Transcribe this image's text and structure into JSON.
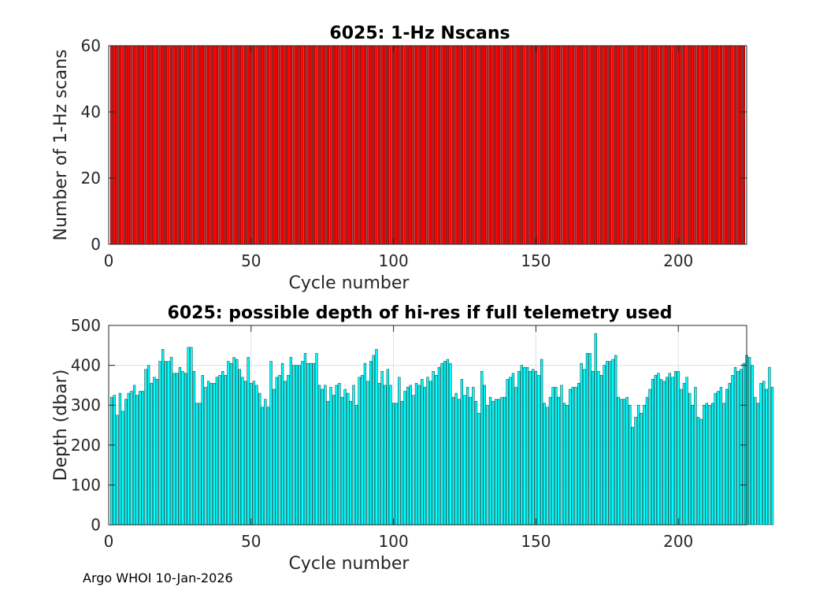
{
  "chart_data": [
    {
      "type": "bar",
      "title": "6025: 1-Hz Nscans",
      "xlabel": "Cycle number",
      "ylabel": "Number of 1-Hz scans",
      "xlim": [
        0,
        224
      ],
      "ylim": [
        0,
        60
      ],
      "xticks": [
        0,
        50,
        100,
        150,
        200
      ],
      "yticks": [
        0,
        20,
        40,
        60
      ],
      "bar_color": "#ff0000",
      "grid": false,
      "x_start": 1,
      "values": [
        60,
        60,
        60,
        60,
        60,
        60,
        60,
        60,
        60,
        60,
        60,
        60,
        60,
        60,
        60,
        60,
        60,
        60,
        60,
        60,
        60,
        60,
        60,
        60,
        60,
        60,
        60,
        60,
        60,
        60,
        60,
        60,
        60,
        60,
        60,
        60,
        60,
        60,
        60,
        60,
        60,
        60,
        60,
        60,
        60,
        60,
        60,
        60,
        60,
        60,
        60,
        60,
        60,
        60,
        60,
        60,
        60,
        60,
        60,
        60,
        60,
        60,
        60,
        60,
        60,
        60,
        60,
        60,
        60,
        60,
        60,
        60,
        60,
        60,
        60,
        60,
        60,
        60,
        60,
        60,
        60,
        60,
        60,
        60,
        60,
        60,
        60,
        60,
        60,
        60,
        60,
        60,
        60,
        60,
        60,
        60,
        60,
        60,
        60,
        60,
        60,
        60,
        60,
        60,
        60,
        60,
        60,
        60,
        60,
        60,
        60,
        60,
        60,
        60,
        60,
        60,
        60,
        60,
        60,
        60,
        60,
        60,
        60,
        60,
        60,
        60,
        60,
        60,
        60,
        60,
        60,
        60,
        60,
        60,
        60,
        60,
        60,
        60,
        60,
        60,
        60,
        60,
        60,
        60,
        60,
        60,
        60,
        60,
        60,
        60,
        60,
        60,
        60,
        60,
        60,
        60,
        60,
        60,
        60,
        60,
        60,
        60,
        60,
        60,
        60,
        60,
        60,
        60,
        60,
        60,
        60,
        60,
        60,
        60,
        60,
        60,
        60,
        60,
        60,
        60,
        60,
        60,
        60,
        60,
        60,
        60,
        60,
        60,
        60,
        60,
        60,
        60,
        60,
        60,
        60,
        60,
        60,
        60,
        60,
        60,
        60,
        60,
        60,
        60,
        60,
        60,
        60,
        60,
        60,
        60,
        60,
        60,
        60,
        60,
        60,
        60,
        60,
        60,
        60,
        60,
        60,
        60,
        60
      ]
    },
    {
      "type": "bar",
      "title": "6025: possible depth of hi-res if full telemetry used",
      "xlabel": "Cycle number",
      "ylabel": "Depth (dbar)",
      "xlim": [
        0,
        224
      ],
      "ylim": [
        0,
        500
      ],
      "xticks": [
        0,
        50,
        100,
        150,
        200
      ],
      "yticks": [
        0,
        100,
        200,
        300,
        400,
        500
      ],
      "bar_color": "#00ffff",
      "grid": true,
      "x_start": 1,
      "values": [
        320,
        325,
        275,
        330,
        285,
        315,
        330,
        335,
        350,
        325,
        335,
        335,
        390,
        400,
        355,
        370,
        365,
        410,
        440,
        410,
        410,
        420,
        380,
        380,
        395,
        385,
        380,
        445,
        445,
        385,
        305,
        305,
        375,
        345,
        360,
        355,
        355,
        370,
        375,
        385,
        375,
        410,
        405,
        420,
        415,
        390,
        370,
        360,
        420,
        355,
        360,
        350,
        330,
        295,
        315,
        295,
        410,
        340,
        370,
        375,
        405,
        360,
        375,
        420,
        400,
        400,
        400,
        410,
        430,
        405,
        405,
        405,
        430,
        350,
        340,
        350,
        310,
        345,
        325,
        350,
        355,
        320,
        340,
        330,
        310,
        350,
        300,
        370,
        375,
        405,
        360,
        410,
        425,
        440,
        355,
        385,
        350,
        390,
        350,
        305,
        305,
        370,
        310,
        335,
        345,
        350,
        325,
        355,
        350,
        365,
        345,
        370,
        360,
        385,
        375,
        395,
        405,
        410,
        415,
        405,
        320,
        330,
        315,
        365,
        325,
        345,
        320,
        345,
        310,
        280,
        385,
        350,
        300,
        320,
        310,
        315,
        315,
        320,
        320,
        365,
        370,
        380,
        345,
        385,
        400,
        395,
        395,
        385,
        390,
        385,
        375,
        415,
        305,
        295,
        320,
        345,
        345,
        320,
        350,
        305,
        300,
        340,
        345,
        345,
        355,
        405,
        390,
        430,
        430,
        385,
        480,
        385,
        375,
        400,
        410,
        410,
        415,
        425,
        320,
        315,
        315,
        320,
        300,
        245,
        270,
        300,
        280,
        300,
        320,
        340,
        365,
        375,
        380,
        365,
        360,
        370,
        380,
        370,
        385,
        385,
        340,
        355,
        370,
        330,
        300,
        345,
        270,
        265,
        300,
        305,
        300,
        305,
        330,
        335,
        345,
        305,
        340,
        355,
        375,
        395,
        385,
        390,
        405,
        425,
        420,
        400,
        320,
        305,
        355,
        360,
        340,
        395,
        345
      ]
    }
  ],
  "footer": "Argo WHOI 10-Jan-2026"
}
